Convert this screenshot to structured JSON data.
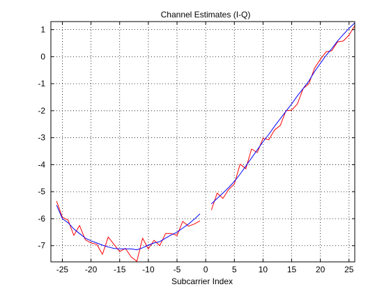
{
  "chart_data": {
    "type": "line",
    "title": "Channel Estimates (I-Q)",
    "xlabel": "Subcarrier Index",
    "ylabel": "",
    "xlim": [
      -27,
      26
    ],
    "ylim": [
      -7.6,
      1.3
    ],
    "xticks": [
      -25,
      -20,
      -15,
      -10,
      -5,
      0,
      5,
      10,
      15,
      20,
      25
    ],
    "yticks": [
      1,
      0,
      -1,
      -2,
      -3,
      -4,
      -5,
      -6,
      -7
    ],
    "grid": true,
    "grid_style": "dotted",
    "series": [
      {
        "color": "#ff0000",
        "segments": [
          {
            "x": [
              -26,
              -25,
              -24,
              -23,
              -22,
              -21,
              -20,
              -19,
              -18,
              -17,
              -16,
              -15,
              -14,
              -13,
              -12,
              -11,
              -10,
              -9,
              -8,
              -7,
              -6,
              -5,
              -4,
              -3,
              -2,
              -1
            ],
            "y": [
              -5.35,
              -5.95,
              -6.05,
              -6.62,
              -6.25,
              -6.78,
              -6.9,
              -6.95,
              -7.32,
              -6.68,
              -6.95,
              -7.22,
              -7.1,
              -7.42,
              -7.58,
              -6.72,
              -7.12,
              -6.8,
              -7.0,
              -6.55,
              -6.55,
              -6.62,
              -6.1,
              -6.28,
              -6.2,
              -6.08
            ]
          },
          {
            "x": [
              1,
              2,
              3,
              4,
              5,
              6,
              7,
              8,
              9,
              10,
              11,
              12,
              13,
              14,
              15,
              16,
              17,
              18,
              19,
              20,
              21,
              22,
              23,
              24,
              25,
              26
            ],
            "y": [
              -5.68,
              -5.05,
              -5.25,
              -4.92,
              -4.72,
              -3.98,
              -4.15,
              -3.42,
              -3.55,
              -3.02,
              -3.08,
              -2.72,
              -2.55,
              -2.0,
              -1.98,
              -1.75,
              -1.18,
              -1.0,
              -0.42,
              -0.1,
              0.18,
              0.22,
              0.55,
              0.58,
              0.8,
              1.15
            ]
          }
        ]
      },
      {
        "color": "#0000ff",
        "segments": [
          {
            "x": [
              -26,
              -25,
              -24,
              -23,
              -22,
              -21,
              -20,
              -19,
              -18,
              -17,
              -16,
              -15,
              -14,
              -13,
              -12,
              -11,
              -10,
              -9,
              -8,
              -7,
              -6,
              -5,
              -4,
              -3,
              -2,
              -1
            ],
            "y": [
              -5.5,
              -6.0,
              -6.15,
              -6.38,
              -6.55,
              -6.72,
              -6.82,
              -6.9,
              -6.98,
              -7.05,
              -7.1,
              -7.12,
              -7.12,
              -7.12,
              -7.15,
              -7.08,
              -6.98,
              -6.9,
              -6.85,
              -6.72,
              -6.6,
              -6.5,
              -6.35,
              -6.2,
              -6.02,
              -5.82
            ]
          },
          {
            "x": [
              1,
              2,
              3,
              4,
              5,
              6,
              7,
              8,
              9,
              10,
              11,
              12,
              13,
              14,
              15,
              16,
              17,
              18,
              19,
              20,
              21,
              22,
              23,
              24,
              25,
              26
            ],
            "y": [
              -5.45,
              -5.25,
              -5.05,
              -4.85,
              -4.62,
              -4.35,
              -4.05,
              -3.75,
              -3.45,
              -3.15,
              -2.88,
              -2.58,
              -2.3,
              -2.02,
              -1.75,
              -1.45,
              -1.18,
              -0.9,
              -0.55,
              -0.25,
              0.05,
              0.3,
              0.58,
              0.82,
              1.05,
              1.25
            ]
          }
        ]
      }
    ]
  }
}
